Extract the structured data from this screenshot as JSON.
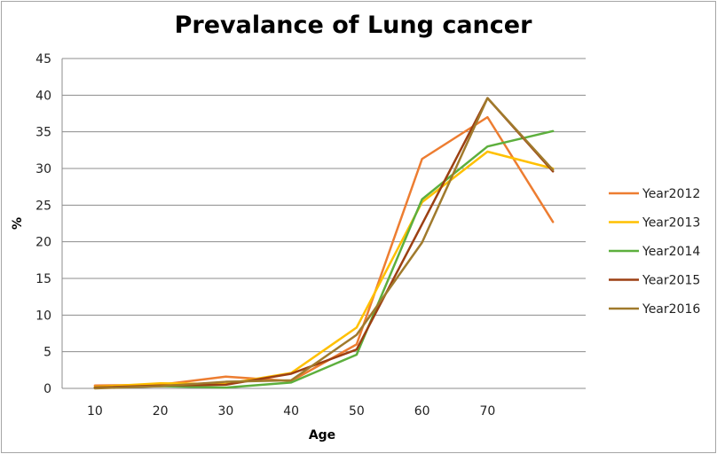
{
  "chart_data": {
    "type": "line",
    "title": "Prevalance of Lung cancer",
    "xlabel": "Age",
    "ylabel": "%",
    "x": [
      10,
      20,
      30,
      40,
      50,
      60,
      70,
      80
    ],
    "x_tick_labels": [
      "10",
      "20",
      "30",
      "40",
      "50",
      "60",
      "70"
    ],
    "y_ticks": [
      0,
      5,
      10,
      15,
      20,
      25,
      30,
      35,
      40,
      45
    ],
    "ylim": [
      0,
      45
    ],
    "grid": "horizontal",
    "legend_position": "right",
    "series": [
      {
        "name": "Year2012",
        "color": "#ed7d31",
        "values": [
          0.4,
          0.5,
          1.6,
          1.0,
          6.0,
          31.3,
          37.0,
          22.7
        ]
      },
      {
        "name": "Year2013",
        "color": "#ffc000",
        "values": [
          0.2,
          0.7,
          0.6,
          2.1,
          8.3,
          25.4,
          32.3,
          30.0
        ]
      },
      {
        "name": "Year2014",
        "color": "#5daf3d",
        "values": [
          0.1,
          0.3,
          0.1,
          0.8,
          4.6,
          25.8,
          33.0,
          35.1
        ]
      },
      {
        "name": "Year2015",
        "color": "#9c3f12",
        "values": [
          0.1,
          0.4,
          0.5,
          2.0,
          5.3,
          22.4,
          39.6,
          29.6
        ]
      },
      {
        "name": "Year2016",
        "color": "#a07a2c",
        "values": [
          0.0,
          0.3,
          0.9,
          1.1,
          7.3,
          19.9,
          39.6,
          29.8
        ]
      }
    ]
  }
}
